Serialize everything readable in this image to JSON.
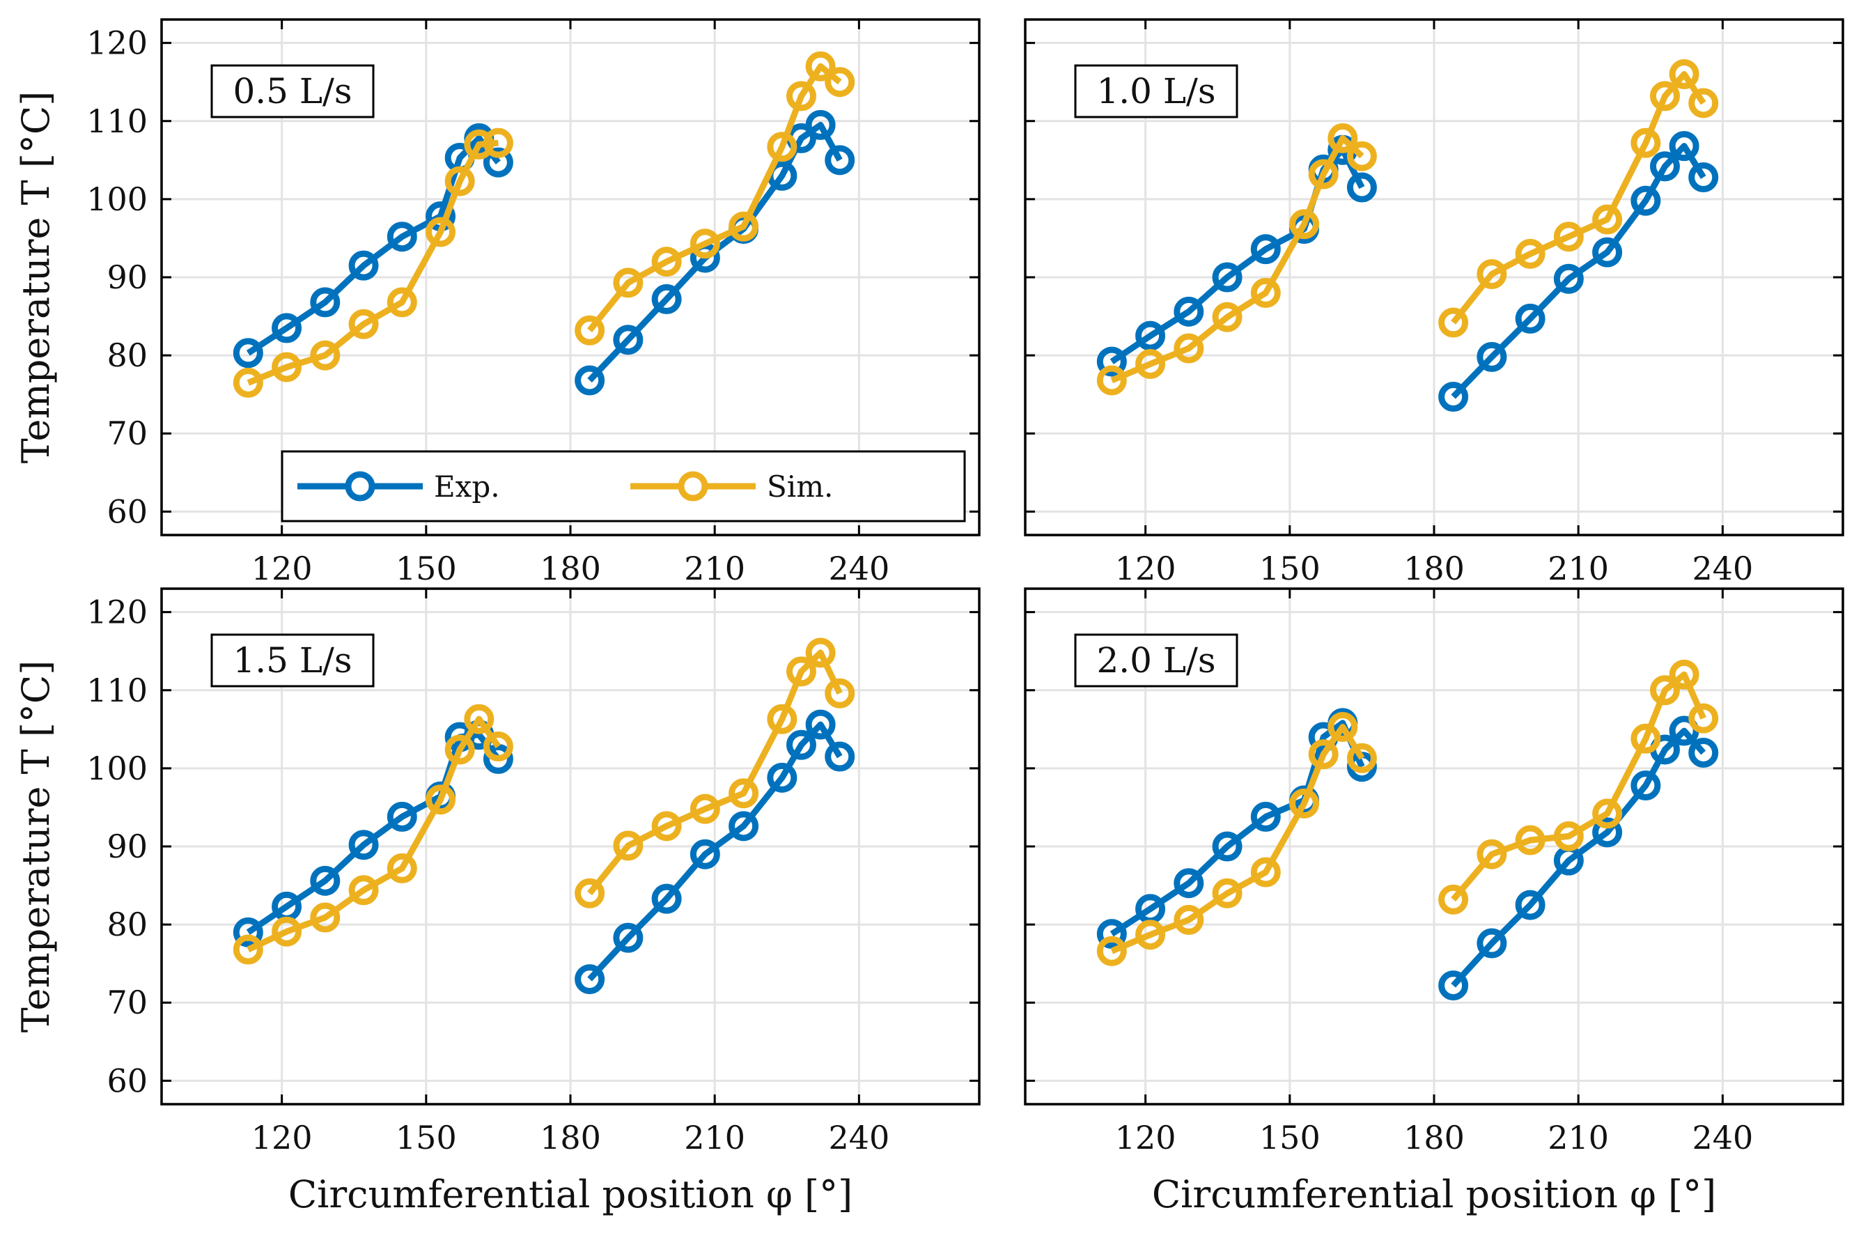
{
  "colors": {
    "exp": "#0072BD",
    "sim": "#EDB120",
    "grid": "#e3e3e3",
    "axis": "#000000"
  },
  "chart_data": [
    {
      "type": "line",
      "panel_label": "0.5 L/s",
      "xlabel": "Circumferential position φ [°]",
      "ylabel": "Temperature T [°C]",
      "xlim": [
        95,
        265
      ],
      "ylim": [
        57,
        123
      ],
      "xticks": [
        "120",
        "150",
        "180",
        "210",
        "240"
      ],
      "yticks": [
        "60",
        "70",
        "80",
        "90",
        "100",
        "110",
        "120"
      ],
      "legend": {
        "placement": "lower-center",
        "entries": [
          "Exp.",
          "Sim."
        ]
      },
      "series": [
        {
          "name": "Exp.",
          "segments": [
            {
              "x": [
                113,
                121,
                129,
                137,
                145,
                153,
                157,
                161,
                165
              ],
              "y": [
                80.3,
                83.5,
                86.8,
                91.5,
                95.2,
                97.8,
                105.3,
                107.8,
                104.7
              ]
            },
            {
              "x": [
                184,
                192,
                200,
                208,
                216,
                224,
                228,
                232,
                236
              ],
              "y": [
                76.8,
                82.0,
                87.2,
                92.5,
                96.2,
                103.0,
                107.8,
                109.5,
                105.0
              ]
            }
          ]
        },
        {
          "name": "Sim.",
          "segments": [
            {
              "x": [
                113,
                121,
                129,
                137,
                145,
                153,
                157,
                161,
                165
              ],
              "y": [
                76.5,
                78.5,
                80.0,
                84.0,
                86.8,
                95.8,
                102.3,
                107.0,
                107.2
              ]
            },
            {
              "x": [
                184,
                192,
                200,
                208,
                216,
                224,
                228,
                232,
                236
              ],
              "y": [
                83.2,
                89.3,
                92.0,
                94.3,
                96.5,
                106.7,
                113.2,
                117.0,
                115.0
              ]
            }
          ]
        }
      ]
    },
    {
      "type": "line",
      "panel_label": "1.0 L/s",
      "xlabel": "Circumferential position φ [°]",
      "ylabel": "",
      "xlim": [
        95,
        265
      ],
      "ylim": [
        57,
        123
      ],
      "xticks": [
        "120",
        "150",
        "180",
        "210",
        "240"
      ],
      "yticks": [],
      "series": [
        {
          "name": "Exp.",
          "segments": [
            {
              "x": [
                113,
                121,
                129,
                137,
                145,
                153,
                157,
                161,
                165
              ],
              "y": [
                79.2,
                82.5,
                85.6,
                90.0,
                93.6,
                96.2,
                103.8,
                106.3,
                101.5
              ]
            },
            {
              "x": [
                184,
                192,
                200,
                208,
                216,
                224,
                228,
                232,
                236
              ],
              "y": [
                74.7,
                79.8,
                84.7,
                89.8,
                93.2,
                99.8,
                104.2,
                106.8,
                102.8
              ]
            }
          ]
        },
        {
          "name": "Sim.",
          "segments": [
            {
              "x": [
                113,
                121,
                129,
                137,
                145,
                153,
                157,
                161,
                165
              ],
              "y": [
                76.8,
                78.9,
                80.9,
                84.9,
                88.0,
                96.8,
                103.2,
                107.8,
                105.5
              ]
            },
            {
              "x": [
                184,
                192,
                200,
                208,
                216,
                224,
                228,
                232,
                236
              ],
              "y": [
                84.2,
                90.4,
                93.0,
                95.2,
                97.4,
                107.2,
                113.2,
                116.0,
                112.3
              ]
            }
          ]
        }
      ]
    },
    {
      "type": "line",
      "panel_label": "1.5 L/s",
      "xlabel": "Circumferential position φ [°]",
      "ylabel": "Temperature T [°C]",
      "xlim": [
        95,
        265
      ],
      "ylim": [
        57,
        123
      ],
      "xticks": [
        "120",
        "150",
        "180",
        "210",
        "240"
      ],
      "yticks": [
        "60",
        "70",
        "80",
        "90",
        "100",
        "110",
        "120"
      ],
      "series": [
        {
          "name": "Exp.",
          "segments": [
            {
              "x": [
                113,
                121,
                129,
                137,
                145,
                153,
                157,
                161,
                165
              ],
              "y": [
                79.0,
                82.3,
                85.6,
                90.2,
                93.8,
                96.4,
                104.0,
                104.3,
                101.2
              ]
            },
            {
              "x": [
                184,
                192,
                200,
                208,
                216,
                224,
                228,
                232,
                236
              ],
              "y": [
                73.0,
                78.3,
                83.3,
                89.0,
                92.6,
                98.8,
                103.0,
                105.6,
                101.5
              ]
            }
          ]
        },
        {
          "name": "Sim.",
          "segments": [
            {
              "x": [
                113,
                121,
                129,
                137,
                145,
                153,
                157,
                161,
                165
              ],
              "y": [
                76.8,
                79.1,
                80.9,
                84.4,
                87.2,
                96.0,
                102.4,
                106.3,
                102.8
              ]
            },
            {
              "x": [
                184,
                192,
                200,
                208,
                216,
                224,
                228,
                232,
                236
              ],
              "y": [
                84.0,
                90.1,
                92.6,
                94.8,
                96.8,
                106.3,
                112.4,
                114.8,
                109.6
              ]
            }
          ]
        }
      ]
    },
    {
      "type": "line",
      "panel_label": "2.0 L/s",
      "xlabel": "Circumferential position φ [°]",
      "ylabel": "",
      "xlim": [
        95,
        265
      ],
      "ylim": [
        57,
        123
      ],
      "xticks": [
        "120",
        "150",
        "180",
        "210",
        "240"
      ],
      "yticks": [],
      "series": [
        {
          "name": "Exp.",
          "segments": [
            {
              "x": [
                113,
                121,
                129,
                137,
                145,
                153,
                157,
                161,
                165
              ],
              "y": [
                78.8,
                82.0,
                85.3,
                90.0,
                93.8,
                95.9,
                104.0,
                105.8,
                100.2
              ]
            },
            {
              "x": [
                184,
                192,
                200,
                208,
                216,
                224,
                228,
                232,
                236
              ],
              "y": [
                72.2,
                77.6,
                82.5,
                88.2,
                91.8,
                97.8,
                102.4,
                104.8,
                102.0
              ]
            }
          ]
        },
        {
          "name": "Sim.",
          "segments": [
            {
              "x": [
                113,
                121,
                129,
                137,
                145,
                153,
                157,
                161,
                165
              ],
              "y": [
                76.6,
                78.7,
                80.6,
                84.0,
                86.7,
                95.5,
                101.8,
                105.3,
                101.3
              ]
            },
            {
              "x": [
                184,
                192,
                200,
                208,
                216,
                224,
                228,
                232,
                236
              ],
              "y": [
                83.2,
                89.0,
                90.8,
                91.3,
                94.2,
                103.8,
                110.0,
                112.0,
                106.4
              ]
            }
          ]
        }
      ]
    }
  ]
}
